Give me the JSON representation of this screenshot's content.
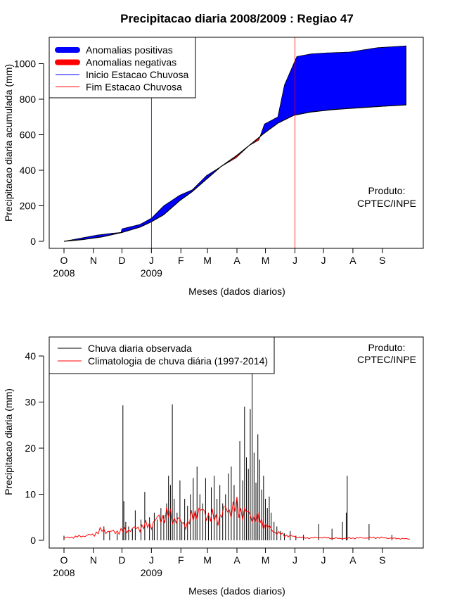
{
  "chart_data": [
    {
      "type": "area",
      "title": "Precipitacao diaria 2008/2009 : Regiao 47",
      "xlabel": "Meses (dados diarios)",
      "ylabel": "Precipitacao diaria acumulada (mm)",
      "ylim": [
        0,
        1100
      ],
      "yticks": [
        0,
        200,
        400,
        600,
        800,
        1000
      ],
      "month_ticks": [
        "O",
        "N",
        "D",
        "J",
        "F",
        "M",
        "A",
        "M",
        "J",
        "J",
        "A",
        "S"
      ],
      "year_labels": [
        {
          "month_index": 0,
          "label": "2008"
        },
        {
          "month_index": 3,
          "label": "2009"
        }
      ],
      "legend": {
        "position": "top-left",
        "items": [
          {
            "label": "Anomalias positivas",
            "color": "#0000ff",
            "style": "thick"
          },
          {
            "label": "Anomalias negativas",
            "color": "#ff0000",
            "style": "thick"
          },
          {
            "label": "Inicio Estacao Chuvosa",
            "color": "#0000ff",
            "style": "line"
          },
          {
            "label": "Fim Estacao Chuvosa",
            "color": "#ff0000",
            "style": "line"
          }
        ]
      },
      "annotation": [
        "Produto:",
        "CPTEC/INPE"
      ],
      "rainy_season_start_day": 92,
      "rainy_season_end_day": 243,
      "series": [
        {
          "name": "Climatologia acumulada",
          "x": [
            0,
            20,
            40,
            61,
            80,
            92,
            105,
            122,
            135,
            150,
            165,
            181,
            195,
            211,
            225,
            242,
            260,
            280,
            300,
            320,
            340,
            360
          ],
          "values": [
            0,
            10,
            25,
            50,
            80,
            110,
            150,
            230,
            280,
            350,
            420,
            480,
            540,
            610,
            665,
            710,
            728,
            740,
            748,
            755,
            762,
            768
          ]
        },
        {
          "name": "Observado acumulado",
          "x": [
            0,
            20,
            35,
            50,
            60,
            61,
            80,
            92,
            105,
            122,
            135,
            150,
            165,
            181,
            195,
            205,
            211,
            225,
            232,
            245,
            260,
            275,
            300,
            330,
            360
          ],
          "values": [
            0,
            20,
            35,
            45,
            50,
            70,
            95,
            130,
            200,
            260,
            290,
            370,
            420,
            470,
            540,
            570,
            660,
            700,
            880,
            1040,
            1055,
            1060,
            1065,
            1090,
            1100
          ]
        }
      ]
    },
    {
      "type": "bar",
      "title": "",
      "xlabel": "Meses (dados diarios)",
      "ylabel": "Precipitacao diaria (mm)",
      "ylim": [
        0,
        44
      ],
      "yticks": [
        0,
        10,
        20,
        30,
        40
      ],
      "month_ticks": [
        "O",
        "N",
        "D",
        "J",
        "F",
        "M",
        "A",
        "M",
        "J",
        "J",
        "A",
        "S"
      ],
      "year_labels": [
        {
          "month_index": 0,
          "label": "2008"
        },
        {
          "month_index": 3,
          "label": "2009"
        }
      ],
      "legend": {
        "position": "top-left",
        "items": [
          {
            "label": "Chuva diaria observada",
            "color": "#000000",
            "style": "line"
          },
          {
            "label": "Climatologia de chuva diária (1997-2014)",
            "color": "#ff0000",
            "style": "line"
          }
        ]
      },
      "annotation": [
        "Produto:",
        "CPTEC/INPE"
      ],
      "bar_color": "#000000",
      "clim_color": "#ff0000",
      "bars": [
        {
          "day": 0,
          "value": 1.0
        },
        {
          "day": 42,
          "value": 3.0
        },
        {
          "day": 48,
          "value": 2.0
        },
        {
          "day": 56,
          "value": 1.5
        },
        {
          "day": 62,
          "value": 29.3
        },
        {
          "day": 63,
          "value": 8.5
        },
        {
          "day": 65,
          "value": 4.0
        },
        {
          "day": 68,
          "value": 3.0
        },
        {
          "day": 72,
          "value": 2.5
        },
        {
          "day": 75,
          "value": 6.5
        },
        {
          "day": 81,
          "value": 4.5
        },
        {
          "day": 85,
          "value": 10.5
        },
        {
          "day": 90,
          "value": 5.0
        },
        {
          "day": 93,
          "value": 3.0
        },
        {
          "day": 95,
          "value": 6.0
        },
        {
          "day": 98,
          "value": 4.5
        },
        {
          "day": 102,
          "value": 7.0
        },
        {
          "day": 105,
          "value": 5.5
        },
        {
          "day": 108,
          "value": 8.0
        },
        {
          "day": 110,
          "value": 14.0
        },
        {
          "day": 112,
          "value": 12.0
        },
        {
          "day": 114,
          "value": 29.5
        },
        {
          "day": 116,
          "value": 9.0
        },
        {
          "day": 119,
          "value": 6.0
        },
        {
          "day": 122,
          "value": 13.0
        },
        {
          "day": 124,
          "value": 4.0
        },
        {
          "day": 127,
          "value": 9.0
        },
        {
          "day": 130,
          "value": 7.5
        },
        {
          "day": 133,
          "value": 10.0
        },
        {
          "day": 136,
          "value": 13.5
        },
        {
          "day": 138,
          "value": 6.0
        },
        {
          "day": 140,
          "value": 16.0
        },
        {
          "day": 143,
          "value": 10.0
        },
        {
          "day": 146,
          "value": 8.0
        },
        {
          "day": 149,
          "value": 13.5
        },
        {
          "day": 152,
          "value": 6.0
        },
        {
          "day": 155,
          "value": 11.5
        },
        {
          "day": 158,
          "value": 14.0
        },
        {
          "day": 161,
          "value": 9.0
        },
        {
          "day": 164,
          "value": 12.0
        },
        {
          "day": 167,
          "value": 8.0
        },
        {
          "day": 170,
          "value": 10.0
        },
        {
          "day": 173,
          "value": 14.5
        },
        {
          "day": 176,
          "value": 16.0
        },
        {
          "day": 179,
          "value": 12.0
        },
        {
          "day": 182,
          "value": 9.0
        },
        {
          "day": 185,
          "value": 21.5
        },
        {
          "day": 188,
          "value": 13.0
        },
        {
          "day": 190,
          "value": 29.0
        },
        {
          "day": 192,
          "value": 18.0
        },
        {
          "day": 194,
          "value": 15.5
        },
        {
          "day": 196,
          "value": 28.5
        },
        {
          "day": 198,
          "value": 41.0
        },
        {
          "day": 200,
          "value": 19.0
        },
        {
          "day": 202,
          "value": 12.5
        },
        {
          "day": 204,
          "value": 23.0
        },
        {
          "day": 206,
          "value": 17.5
        },
        {
          "day": 208,
          "value": 11.0
        },
        {
          "day": 210,
          "value": 14.0
        },
        {
          "day": 212,
          "value": 9.0
        },
        {
          "day": 214,
          "value": 7.0
        },
        {
          "day": 216,
          "value": 9.5
        },
        {
          "day": 218,
          "value": 6.0
        },
        {
          "day": 221,
          "value": 4.0
        },
        {
          "day": 224,
          "value": 3.0
        },
        {
          "day": 228,
          "value": 2.0
        },
        {
          "day": 232,
          "value": 1.5
        },
        {
          "day": 238,
          "value": 2.0
        },
        {
          "day": 244,
          "value": 1.0
        },
        {
          "day": 252,
          "value": 1.2
        },
        {
          "day": 268,
          "value": 3.5
        },
        {
          "day": 282,
          "value": 2.5
        },
        {
          "day": 293,
          "value": 4.0
        },
        {
          "day": 297,
          "value": 6.0
        },
        {
          "day": 298,
          "value": 14.0
        },
        {
          "day": 321,
          "value": 3.5
        },
        {
          "day": 345,
          "value": 1.2
        }
      ],
      "climatology": {
        "x": [
          0,
          15,
          30,
          40,
          50,
          61,
          75,
          92,
          100,
          110,
          122,
          130,
          140,
          152,
          160,
          170,
          181,
          190,
          200,
          211,
          220,
          230,
          242,
          255,
          270,
          290,
          310,
          330,
          350,
          364
        ],
        "values": [
          0.5,
          0.8,
          1.2,
          2.2,
          1.8,
          2.0,
          2.5,
          3.5,
          4.8,
          5.5,
          4.0,
          3.5,
          6.5,
          5.5,
          4.5,
          6.5,
          7.0,
          6.0,
          5.0,
          3.5,
          2.0,
          1.2,
          0.8,
          0.5,
          0.6,
          0.4,
          0.5,
          0.6,
          0.4,
          0.3
        ]
      }
    }
  ]
}
